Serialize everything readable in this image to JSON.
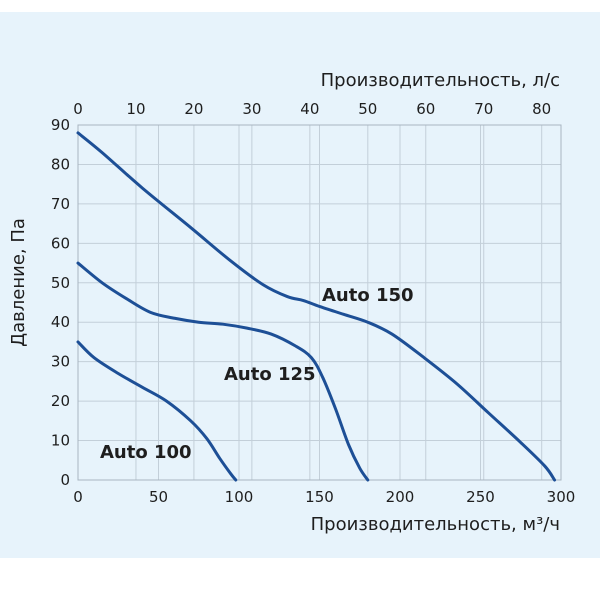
{
  "colors": {
    "background": "#e7f3fb",
    "grid": "#c3cfd9",
    "frame": "#a8b5c0",
    "curve": "#1d4f96",
    "text": "#1e1e1e"
  },
  "chart_data": {
    "type": "line",
    "grid": true,
    "legend": "none",
    "xlabel": "Производительность, м³/ч",
    "x2label": "Производительность, л/с",
    "ylabel": "Давление, Па",
    "xlim": [
      0,
      300
    ],
    "x2lim": [
      0,
      83.33
    ],
    "ylim": [
      0,
      90
    ],
    "x_ticks": [
      0,
      50,
      100,
      150,
      200,
      250,
      300
    ],
    "x2_ticks": [
      0,
      10,
      20,
      30,
      40,
      50,
      60,
      70,
      80
    ],
    "y_ticks": [
      0,
      10,
      20,
      30,
      40,
      50,
      60,
      70,
      80,
      90
    ],
    "series": [
      {
        "name": "Auto 150",
        "points": [
          [
            0,
            88
          ],
          [
            15,
            83
          ],
          [
            40,
            74
          ],
          [
            70,
            64
          ],
          [
            95,
            55.5
          ],
          [
            115,
            49.5
          ],
          [
            130,
            46.5
          ],
          [
            140,
            45.5
          ],
          [
            150,
            44
          ],
          [
            165,
            42
          ],
          [
            180,
            40
          ],
          [
            195,
            37
          ],
          [
            215,
            31
          ],
          [
            235,
            24.5
          ],
          [
            255,
            17
          ],
          [
            275,
            9.5
          ],
          [
            290,
            3.5
          ],
          [
            296,
            0
          ]
        ]
      },
      {
        "name": "Auto 125",
        "points": [
          [
            0,
            55
          ],
          [
            15,
            50
          ],
          [
            30,
            46
          ],
          [
            45,
            42.5
          ],
          [
            60,
            41
          ],
          [
            75,
            40
          ],
          [
            90,
            39.5
          ],
          [
            105,
            38.5
          ],
          [
            120,
            37
          ],
          [
            135,
            34
          ],
          [
            145,
            31
          ],
          [
            152,
            26
          ],
          [
            160,
            18
          ],
          [
            168,
            9
          ],
          [
            175,
            3
          ],
          [
            180,
            0
          ]
        ]
      },
      {
        "name": "Auto 100",
        "points": [
          [
            0,
            35
          ],
          [
            10,
            31
          ],
          [
            25,
            27
          ],
          [
            40,
            23.5
          ],
          [
            55,
            20
          ],
          [
            70,
            15
          ],
          [
            80,
            10.5
          ],
          [
            88,
            5.5
          ],
          [
            95,
            1.5
          ],
          [
            98,
            0
          ]
        ]
      }
    ]
  }
}
